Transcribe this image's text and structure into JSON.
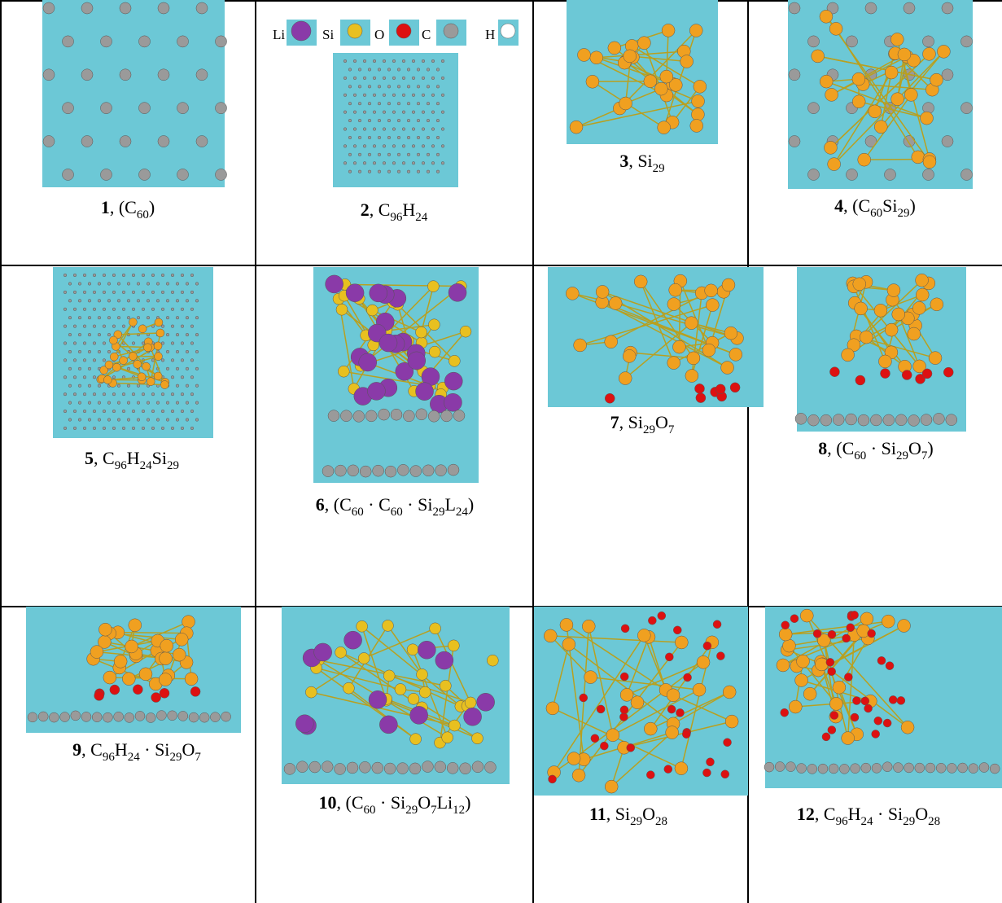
{
  "legend": [
    "Li",
    "Si",
    "O",
    "C",
    "H"
  ],
  "cells": [
    {
      "number": "1",
      "parts": [
        ", (C",
        "60",
        ")"
      ]
    },
    {
      "number": "2",
      "parts": [
        ", C",
        "96",
        "H",
        "24"
      ]
    },
    {
      "number": "3",
      "parts": [
        ", Si",
        "29"
      ]
    },
    {
      "number": "4",
      "parts": [
        ", (C",
        "60",
        "Si",
        "29",
        ")"
      ]
    },
    {
      "number": "5",
      "parts": [
        ", C",
        "96",
        "H",
        "24",
        "Si",
        "29"
      ]
    },
    {
      "number": "6",
      "parts": [
        ", (C",
        "60",
        " · C",
        "60",
        " · Si",
        "29",
        "L",
        "24",
        ")"
      ]
    },
    {
      "number": "7",
      "parts": [
        ", Si",
        "29",
        "O",
        "7"
      ]
    },
    {
      "number": "8",
      "parts": [
        ", (C",
        "60",
        " · Si",
        "29",
        "O",
        "7",
        ")"
      ]
    },
    {
      "number": "9",
      "parts": [
        ", C",
        "96",
        "H",
        "24",
        " · Si",
        "29",
        "O",
        "7"
      ]
    },
    {
      "number": "10",
      "parts": [
        ", (C",
        "60",
        " · Si",
        "29",
        "O",
        "7",
        "Li",
        "12",
        ")"
      ]
    },
    {
      "number": "11",
      "parts": [
        ", Si",
        "29",
        "O",
        "28"
      ]
    },
    {
      "number": "12",
      "parts": [
        ", C",
        "96",
        "H",
        "24",
        " · Si",
        "29",
        "O",
        "28"
      ]
    }
  ]
}
